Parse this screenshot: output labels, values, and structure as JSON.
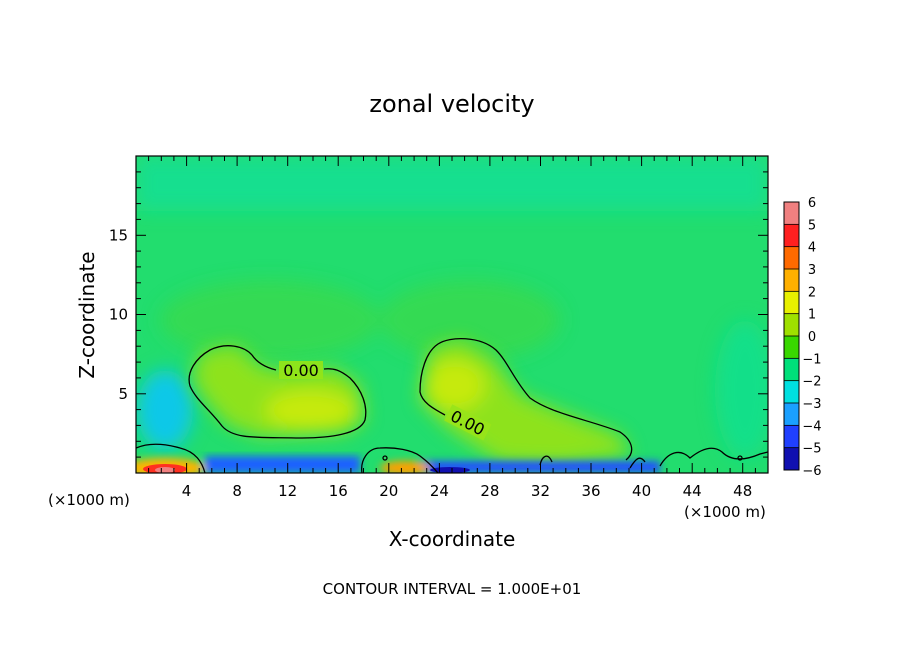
{
  "chart_data": {
    "type": "heatmap",
    "title": "zonal velocity",
    "xlabel": "X-coordinate",
    "ylabel": "Z-coordinate",
    "x_unit_left": "(×1000 m)",
    "x_unit_right": "(×1000 m)",
    "xlim": [
      0,
      50
    ],
    "ylim": [
      0,
      20
    ],
    "xticks": [
      4,
      8,
      12,
      16,
      20,
      24,
      28,
      32,
      36,
      40,
      44,
      48
    ],
    "xtick_labels": [
      "4",
      "8",
      "12",
      "16",
      "20",
      "24",
      "28",
      "32",
      "36",
      "40",
      "44",
      "48"
    ],
    "yticks": [
      5,
      10,
      15
    ],
    "ytick_labels": [
      "5",
      "10",
      "15"
    ],
    "footer": "CONTOUR INTERVAL = 1.000E+01",
    "contour_labels": [
      "0.00",
      "0.00"
    ],
    "colorbar": {
      "levels": [
        6,
        5,
        4,
        3,
        2,
        1,
        0,
        -1,
        -2,
        -3,
        -4,
        -5,
        -6
      ],
      "level_labels": [
        "6",
        "5",
        "4",
        "3",
        "2",
        "1",
        "0",
        "−1",
        "−2",
        "−3",
        "−4",
        "−5",
        "−6"
      ],
      "colors": [
        "#f08080",
        "#ff2020",
        "#ff6a00",
        "#ffb000",
        "#e8f000",
        "#9fe000",
        "#39d800",
        "#00e07a",
        "#00e0e0",
        "#1aa0ff",
        "#2040ff",
        "#1010b0",
        "#7000c0"
      ]
    },
    "field_summary": {
      "background_value": -0.5,
      "positive_cells": [
        {
          "x_range": [
            5,
            18
          ],
          "z_range": [
            2.5,
            8
          ],
          "peak": 1.5
        },
        {
          "x_range": [
            23,
            40
          ],
          "z_range": [
            1,
            8.5
          ],
          "peak": 2
        },
        {
          "x_range": [
            0,
            5
          ],
          "z_range": [
            0,
            1
          ],
          "peak": 5
        }
      ],
      "negative_regions": [
        {
          "x_range": [
            1,
            4
          ],
          "z_range": [
            2,
            6
          ],
          "value": -2.5
        },
        {
          "x_range": [
            6,
            18
          ],
          "z_range": [
            0,
            1
          ],
          "value": -3.5
        },
        {
          "x_range": [
            24,
            40
          ],
          "z_range": [
            0,
            0.3
          ],
          "value": -4
        }
      ]
    }
  }
}
